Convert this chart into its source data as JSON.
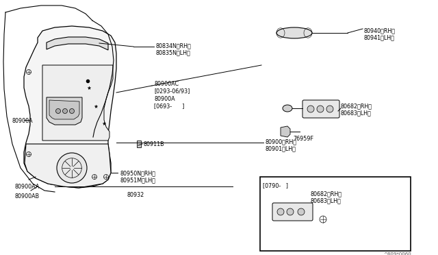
{
  "bg_color": "#ffffff",
  "lc": "#000000",
  "fig_width": 6.4,
  "fig_height": 3.72,
  "dpi": 100,
  "watermark": "^809*0060",
  "fs": 5.8,
  "labels": {
    "80940_RH": "80940＜RH＞",
    "80941_LH": "80941＜LH＞",
    "80834N_RH": "80834N＜RH＞",
    "80835N_LH": "80835N＜LH＞",
    "80900AC": "80900AC",
    "date1": "[0293-06/93]",
    "80900A": "80900A",
    "date2": "[0693-      ]",
    "80682_RH": "80682＜RH＞",
    "80683_LH": "80683＜LH＞",
    "76959F": "76959F",
    "80900_RH": "80900＜RH＞",
    "80901_LH": "80901＜LH＞",
    "80911B": "80911B",
    "80950N_RH": "80950N＜RH＞",
    "80951M_LH": "80951M＜LH＞",
    "80932": "80932",
    "80900A_side": "80900A",
    "80900AA": "80900AA",
    "80900AB": "80900AB",
    "box_date": "[0790-   ]",
    "80682_RH2": "80682＜RH＞",
    "80683_LH2": "80683＜LH＞"
  }
}
